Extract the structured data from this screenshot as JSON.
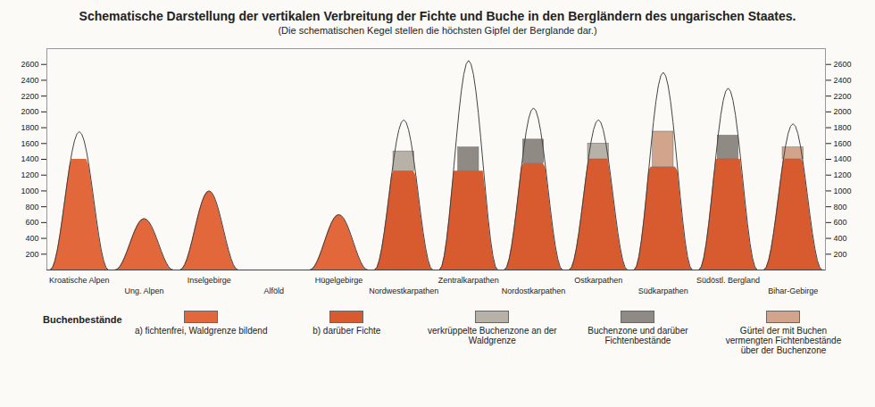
{
  "chart_data": {
    "type": "area",
    "title": "Schematische Darstellung der vertikalen Verbreitung der Fichte und Buche in den Bergländern des ungarischen Staates.",
    "subtitle": "(Die schematischen Kegel stellen die höchsten Gipfel der Berglande dar.)",
    "legend_title": "Buchenbestände",
    "categories": [
      "Kroatische Alpen",
      "Ung. Alpen",
      "Inselgebirge",
      "Alföld",
      "Hügelgebirge",
      "Nordwestkarpathen",
      "Zentralkarpathen",
      "Nordostkarpathen",
      "Ostkarpathen",
      "Südkarpathen",
      "Südöstl. Bergland",
      "Bihar-Gebirge"
    ],
    "peaks": [
      1750,
      650,
      1000,
      null,
      700,
      1900,
      2650,
      2050,
      1900,
      2500,
      2300,
      1850
    ],
    "series": [
      {
        "name": "a) fichtenfrei, Waldgrenze bildend",
        "color": "#e2673b",
        "values": [
          1400,
          650,
          1000,
          null,
          700,
          null,
          null,
          null,
          null,
          null,
          null,
          null
        ]
      },
      {
        "name": "b) darüber Fichte",
        "color": "#d85a2f",
        "values": [
          null,
          null,
          null,
          null,
          null,
          1250,
          1250,
          1350,
          1400,
          1300,
          1400,
          1400
        ]
      },
      {
        "name": "verkrüppelte Buchenzone an der Waldgrenze",
        "color": "#b8b1a7",
        "values": [
          null,
          null,
          null,
          null,
          null,
          250,
          null,
          null,
          200,
          null,
          null,
          null
        ]
      },
      {
        "name": "Buchenzone und darüber Fichtenbestände",
        "color": "#8f8a83",
        "values": [
          null,
          null,
          null,
          null,
          null,
          null,
          300,
          300,
          null,
          null,
          300,
          null
        ]
      },
      {
        "name": "Gürtel der mit Buchen vermengten Fichtenbestände über der Buchenzone",
        "color": "#d3a48c",
        "values": [
          null,
          null,
          null,
          null,
          null,
          null,
          null,
          null,
          null,
          450,
          null,
          150
        ]
      }
    ],
    "ylim": [
      0,
      2800
    ],
    "yticks": [
      200,
      400,
      600,
      800,
      1000,
      1200,
      1400,
      1600,
      1800,
      2000,
      2200,
      2400,
      2600
    ],
    "grid": false,
    "legend": "bottom"
  }
}
